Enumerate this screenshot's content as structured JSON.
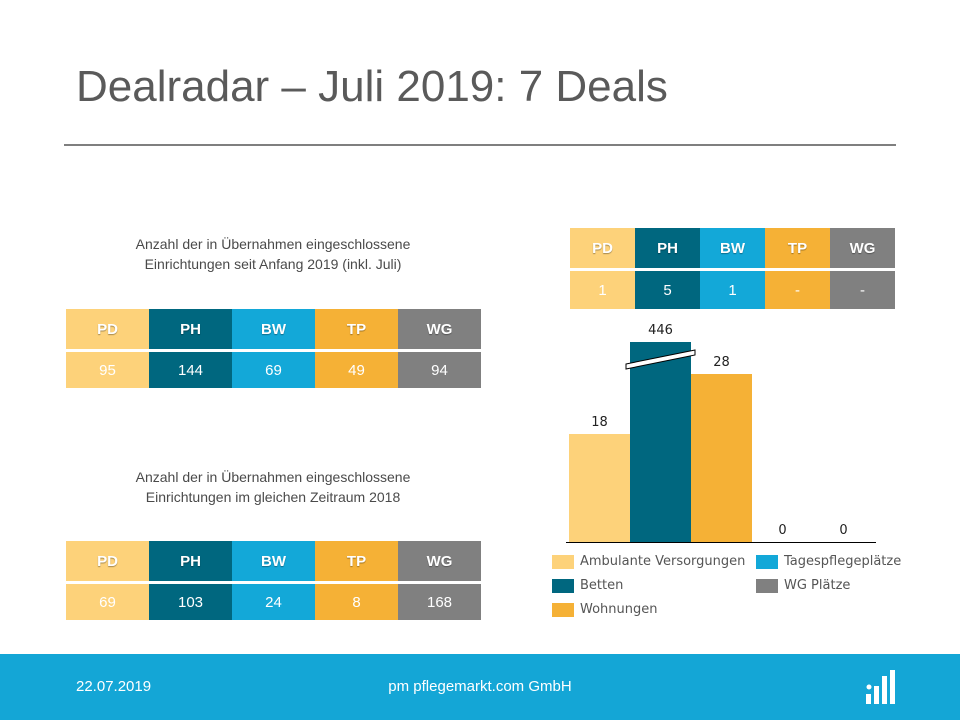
{
  "title": "Dealradar – Juli 2019: 7 Deals",
  "colors": {
    "PD": "#fdd27a",
    "PH": "#00677f",
    "BW": "#13a8d8",
    "TP": "#f5b136",
    "WG": "#808080",
    "footer": "#14a6d6"
  },
  "header_labels": [
    "PD",
    "PH",
    "BW",
    "TP",
    "WG"
  ],
  "summary_2019": {
    "caption": "Anzahl der in Übernahmen  eingeschlossene\nEinrichtungen  seit Anfang 2019 (inkl. Juli)",
    "values": [
      "95",
      "144",
      "69",
      "49",
      "94"
    ]
  },
  "summary_2018": {
    "caption": "Anzahl der in Übernahmen  eingeschlossene\nEinrichtungen  im gleichen Zeitraum 2018",
    "values": [
      "69",
      "103",
      "24",
      "8",
      "168"
    ]
  },
  "july_deals": {
    "labels": [
      "PD",
      "PH",
      "BW",
      "TP",
      "WG"
    ],
    "values": [
      "1",
      "5",
      "1",
      "-",
      "-"
    ]
  },
  "chart_data": {
    "type": "bar",
    "categories": [
      "Ambulante Versorgungen",
      "Betten",
      "Wohnungen",
      "Tagespflegeplätze",
      "WG Plätze"
    ],
    "values": [
      18,
      446,
      28,
      0,
      0
    ],
    "data_labels": [
      "18",
      "446",
      "28",
      "0",
      "0"
    ],
    "axis_break": true,
    "grid": false,
    "legend_placement": "bottom",
    "legend": [
      "Ambulante Versorgungen",
      "Betten",
      "Wohnungen",
      "Tagespflegeplätze",
      "WG Plätze"
    ]
  },
  "footer": {
    "date": "22.07.2019",
    "company": "pm pflegemarkt.com GmbH",
    "logo_icon": "pflegemarkt-logo-icon"
  }
}
